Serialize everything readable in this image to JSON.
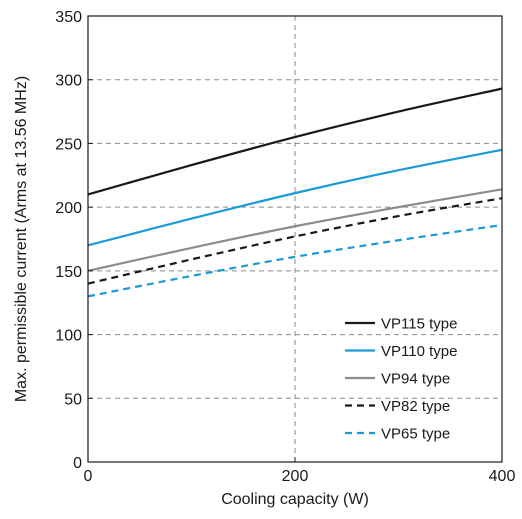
{
  "chart_data": {
    "type": "line",
    "xlabel": "Cooling capacity (W)",
    "ylabel": "Max. permissible current (Arms at 13.56 MHz)",
    "xlim": [
      0,
      400
    ],
    "ylim": [
      0,
      350
    ],
    "x_ticks": [
      "0",
      "200",
      "400"
    ],
    "y_ticks": [
      "0",
      "50",
      "100",
      "150",
      "200",
      "250",
      "300",
      "350"
    ],
    "x_tick_values": [
      0,
      200,
      400
    ],
    "y_tick_values": [
      0,
      50,
      100,
      150,
      200,
      250,
      300,
      350
    ],
    "grid": true,
    "legend_position": "bottom-right",
    "series": [
      {
        "name": "VP115 type",
        "color": "#1a1a1a",
        "dashed": false,
        "x": [
          0,
          100,
          200,
          300,
          400
        ],
        "y": [
          210,
          233,
          255,
          275,
          293
        ]
      },
      {
        "name": "VP110 type",
        "color": "#1a9ad6",
        "dashed": false,
        "x": [
          0,
          100,
          200,
          300,
          400
        ],
        "y": [
          170,
          191,
          211,
          229,
          245
        ]
      },
      {
        "name": "VP94 type",
        "color": "#8c8c8c",
        "dashed": false,
        "x": [
          0,
          100,
          200,
          300,
          400
        ],
        "y": [
          150,
          168,
          185,
          200,
          214
        ]
      },
      {
        "name": "VP82 type",
        "color": "#1a1a1a",
        "dashed": true,
        "x": [
          0,
          100,
          200,
          300,
          400
        ],
        "y": [
          140,
          159,
          177,
          193,
          207
        ]
      },
      {
        "name": "VP65 type",
        "color": "#1a9ad6",
        "dashed": true,
        "x": [
          0,
          100,
          200,
          300,
          400
        ],
        "y": [
          130,
          146,
          161,
          174,
          186
        ]
      }
    ]
  }
}
